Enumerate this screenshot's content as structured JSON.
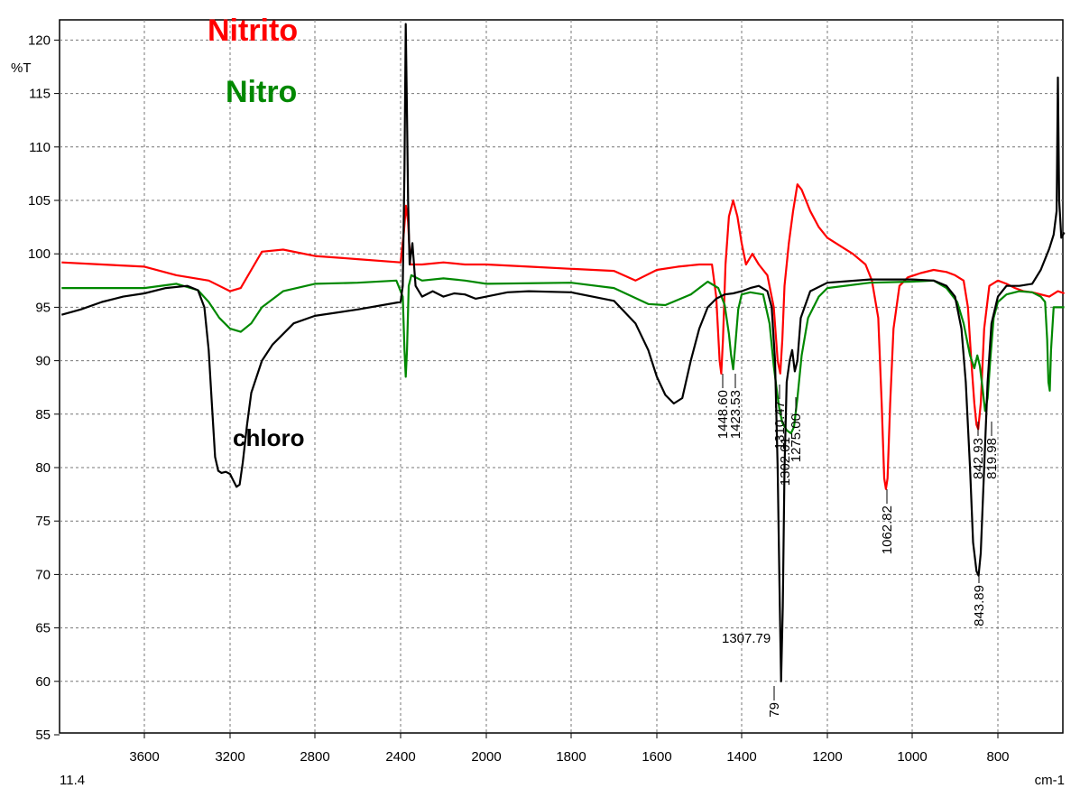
{
  "chart_data": {
    "type": "line",
    "ylabel": "%T",
    "xlabel": "cm-1",
    "x_start_label": "11.4",
    "xlim": [
      4000,
      640
    ],
    "ylim": [
      55,
      122
    ],
    "x_ticks": [
      3600,
      3200,
      2800,
      2400,
      2000,
      1800,
      1600,
      1400,
      1200,
      1000,
      800
    ],
    "y_ticks": [
      55,
      60,
      65,
      70,
      75,
      80,
      85,
      90,
      95,
      100,
      105,
      110,
      115,
      120
    ],
    "grid": true,
    "legend": [
      {
        "text": "Nitrito",
        "color": "#ff0000"
      },
      {
        "text": "Nitro",
        "color": "#008800"
      }
    ],
    "series": [
      {
        "name": "Nitrito",
        "color": "#ff0000",
        "points": [
          [
            3990,
            99.2
          ],
          [
            3800,
            99.0
          ],
          [
            3600,
            98.8
          ],
          [
            3450,
            98.0
          ],
          [
            3300,
            97.5
          ],
          [
            3250,
            97.0
          ],
          [
            3200,
            96.5
          ],
          [
            3150,
            96.8
          ],
          [
            3100,
            98.5
          ],
          [
            3050,
            100.2
          ],
          [
            2950,
            100.4
          ],
          [
            2800,
            99.8
          ],
          [
            2600,
            99.5
          ],
          [
            2400,
            99.2
          ],
          [
            2385,
            102
          ],
          [
            2375,
            104.5
          ],
          [
            2365,
            103
          ],
          [
            2355,
            99
          ],
          [
            2300,
            99.0
          ],
          [
            2200,
            99.2
          ],
          [
            2100,
            99.0
          ],
          [
            2000,
            99.0
          ],
          [
            1900,
            98.8
          ],
          [
            1800,
            98.6
          ],
          [
            1700,
            98.4
          ],
          [
            1650,
            97.5
          ],
          [
            1600,
            98.5
          ],
          [
            1550,
            98.8
          ],
          [
            1500,
            99.0
          ],
          [
            1470,
            99.0
          ],
          [
            1460,
            96
          ],
          [
            1452,
            90
          ],
          [
            1448,
            88.8
          ],
          [
            1444,
            92
          ],
          [
            1438,
            99
          ],
          [
            1430,
            103.5
          ],
          [
            1420,
            105
          ],
          [
            1410,
            103.5
          ],
          [
            1400,
            101
          ],
          [
            1390,
            99
          ],
          [
            1375,
            100
          ],
          [
            1360,
            99
          ],
          [
            1340,
            98
          ],
          [
            1325,
            95
          ],
          [
            1316,
            90
          ],
          [
            1310,
            88.8
          ],
          [
            1305,
            92
          ],
          [
            1300,
            97
          ],
          [
            1290,
            101
          ],
          [
            1280,
            104
          ],
          [
            1270,
            106.5
          ],
          [
            1260,
            106
          ],
          [
            1240,
            104
          ],
          [
            1220,
            102.5
          ],
          [
            1200,
            101.5
          ],
          [
            1160,
            100.5
          ],
          [
            1140,
            100
          ],
          [
            1110,
            99
          ],
          [
            1095,
            97.5
          ],
          [
            1080,
            94
          ],
          [
            1072,
            86
          ],
          [
            1066,
            79
          ],
          [
            1062,
            78.0
          ],
          [
            1058,
            79
          ],
          [
            1052,
            86
          ],
          [
            1044,
            93
          ],
          [
            1030,
            97
          ],
          [
            1010,
            97.8
          ],
          [
            980,
            98.2
          ],
          [
            950,
            98.5
          ],
          [
            920,
            98.3
          ],
          [
            900,
            98.0
          ],
          [
            880,
            97.5
          ],
          [
            870,
            95
          ],
          [
            862,
            90
          ],
          [
            855,
            86
          ],
          [
            850,
            84
          ],
          [
            846,
            83.6
          ],
          [
            840,
            86
          ],
          [
            832,
            93
          ],
          [
            820,
            97
          ],
          [
            800,
            97.5
          ],
          [
            780,
            97.2
          ],
          [
            760,
            96.8
          ],
          [
            740,
            96.5
          ],
          [
            720,
            96.4
          ],
          [
            700,
            96.2
          ],
          [
            680,
            96.0
          ],
          [
            660,
            96.5
          ],
          [
            645,
            96.3
          ]
        ]
      },
      {
        "name": "Nitro",
        "color": "#008800",
        "points": [
          [
            3990,
            96.8
          ],
          [
            3800,
            96.8
          ],
          [
            3600,
            96.8
          ],
          [
            3450,
            97.2
          ],
          [
            3350,
            96.6
          ],
          [
            3300,
            95.5
          ],
          [
            3250,
            94
          ],
          [
            3200,
            93.0
          ],
          [
            3150,
            92.7
          ],
          [
            3100,
            93.5
          ],
          [
            3050,
            95
          ],
          [
            2950,
            96.5
          ],
          [
            2800,
            97.2
          ],
          [
            2600,
            97.3
          ],
          [
            2420,
            97.5
          ],
          [
            2390,
            96
          ],
          [
            2382,
            91
          ],
          [
            2376,
            88.5
          ],
          [
            2370,
            91
          ],
          [
            2362,
            97
          ],
          [
            2350,
            98
          ],
          [
            2300,
            97.5
          ],
          [
            2200,
            97.7
          ],
          [
            2100,
            97.5
          ],
          [
            2000,
            97.2
          ],
          [
            1800,
            97.3
          ],
          [
            1700,
            96.8
          ],
          [
            1620,
            95.3
          ],
          [
            1580,
            95.2
          ],
          [
            1520,
            96.2
          ],
          [
            1480,
            97.4
          ],
          [
            1455,
            96.8
          ],
          [
            1440,
            95.2
          ],
          [
            1430,
            92.5
          ],
          [
            1425,
            90.5
          ],
          [
            1420,
            89.2
          ],
          [
            1415,
            91.5
          ],
          [
            1408,
            94.8
          ],
          [
            1400,
            96.2
          ],
          [
            1380,
            96.4
          ],
          [
            1350,
            96.2
          ],
          [
            1335,
            93.5
          ],
          [
            1325,
            89.5
          ],
          [
            1318,
            87.2
          ],
          [
            1312,
            85.5
          ],
          [
            1305,
            84.2
          ],
          [
            1295,
            83.5
          ],
          [
            1285,
            83.2
          ],
          [
            1278,
            83.8
          ],
          [
            1270,
            86.5
          ],
          [
            1260,
            90.5
          ],
          [
            1245,
            94
          ],
          [
            1220,
            96
          ],
          [
            1200,
            96.8
          ],
          [
            1100,
            97.3
          ],
          [
            1000,
            97.4
          ],
          [
            950,
            97.5
          ],
          [
            920,
            96.8
          ],
          [
            895,
            95.5
          ],
          [
            880,
            93.5
          ],
          [
            865,
            90.5
          ],
          [
            855,
            89.3
          ],
          [
            848,
            90.5
          ],
          [
            842,
            89.5
          ],
          [
            836,
            87.5
          ],
          [
            830,
            85.3
          ],
          [
            824,
            86.5
          ],
          [
            818,
            90
          ],
          [
            810,
            94
          ],
          [
            800,
            95.5
          ],
          [
            780,
            96.2
          ],
          [
            750,
            96.5
          ],
          [
            720,
            96.4
          ],
          [
            700,
            96.0
          ],
          [
            690,
            95.5
          ],
          [
            685,
            92
          ],
          [
            682,
            88
          ],
          [
            679,
            87.2
          ],
          [
            676,
            91
          ],
          [
            670,
            95
          ],
          [
            655,
            95
          ],
          [
            645,
            95
          ]
        ]
      },
      {
        "name": "chloro",
        "color": "#000000",
        "points": [
          [
            3990,
            94.3
          ],
          [
            3900,
            94.8
          ],
          [
            3800,
            95.5
          ],
          [
            3700,
            96.0
          ],
          [
            3600,
            96.3
          ],
          [
            3500,
            96.8
          ],
          [
            3400,
            97.0
          ],
          [
            3350,
            96.6
          ],
          [
            3320,
            95
          ],
          [
            3300,
            91
          ],
          [
            3285,
            86
          ],
          [
            3270,
            81
          ],
          [
            3255,
            79.7
          ],
          [
            3240,
            79.5
          ],
          [
            3220,
            79.6
          ],
          [
            3200,
            79.4
          ],
          [
            3185,
            78.8
          ],
          [
            3170,
            78.2
          ],
          [
            3155,
            78.4
          ],
          [
            3140,
            80.5
          ],
          [
            3120,
            84
          ],
          [
            3100,
            87
          ],
          [
            3050,
            90
          ],
          [
            3000,
            91.5
          ],
          [
            2900,
            93.5
          ],
          [
            2800,
            94.2
          ],
          [
            2600,
            94.8
          ],
          [
            2400,
            95.5
          ],
          [
            2390,
            97
          ],
          [
            2382,
            108
          ],
          [
            2376,
            121.5
          ],
          [
            2370,
            113
          ],
          [
            2365,
            105
          ],
          [
            2358,
            99
          ],
          [
            2345,
            101
          ],
          [
            2330,
            97
          ],
          [
            2300,
            96
          ],
          [
            2250,
            96.5
          ],
          [
            2200,
            96
          ],
          [
            2150,
            96.3
          ],
          [
            2100,
            96.2
          ],
          [
            2050,
            95.8
          ],
          [
            2000,
            96
          ],
          [
            1950,
            96.4
          ],
          [
            1900,
            96.5
          ],
          [
            1800,
            96.4
          ],
          [
            1700,
            95.6
          ],
          [
            1650,
            93.5
          ],
          [
            1620,
            91
          ],
          [
            1600,
            88.5
          ],
          [
            1580,
            86.8
          ],
          [
            1560,
            86.0
          ],
          [
            1540,
            86.5
          ],
          [
            1520,
            90
          ],
          [
            1500,
            93
          ],
          [
            1480,
            95
          ],
          [
            1460,
            95.8
          ],
          [
            1440,
            96.2
          ],
          [
            1420,
            96.3
          ],
          [
            1400,
            96.5
          ],
          [
            1380,
            96.8
          ],
          [
            1360,
            97
          ],
          [
            1340,
            96.5
          ],
          [
            1330,
            95
          ],
          [
            1322,
            90
          ],
          [
            1316,
            80
          ],
          [
            1311,
            67
          ],
          [
            1308,
            60.0
          ],
          [
            1304,
            67
          ],
          [
            1300,
            80
          ],
          [
            1295,
            88
          ],
          [
            1288,
            90
          ],
          [
            1282,
            91
          ],
          [
            1276,
            89
          ],
          [
            1270,
            90
          ],
          [
            1262,
            94
          ],
          [
            1240,
            96.5
          ],
          [
            1200,
            97.3
          ],
          [
            1100,
            97.6
          ],
          [
            1000,
            97.6
          ],
          [
            950,
            97.5
          ],
          [
            920,
            97
          ],
          [
            900,
            96
          ],
          [
            885,
            93
          ],
          [
            875,
            88
          ],
          [
            865,
            80
          ],
          [
            858,
            73
          ],
          [
            850,
            70.3
          ],
          [
            845,
            69.9
          ],
          [
            840,
            72
          ],
          [
            832,
            80
          ],
          [
            824,
            88
          ],
          [
            815,
            93.5
          ],
          [
            800,
            96
          ],
          [
            780,
            97
          ],
          [
            750,
            97
          ],
          [
            720,
            97.2
          ],
          [
            700,
            98.5
          ],
          [
            680,
            100.5
          ],
          [
            670,
            101.8
          ],
          [
            663,
            104
          ],
          [
            660,
            116.5
          ],
          [
            657,
            105
          ],
          [
            652,
            101.5
          ],
          [
            645,
            102
          ]
        ]
      }
    ],
    "annotations": [
      {
        "text": "chloro",
        "color": "#000000"
      },
      {
        "text": "1448.60",
        "color": "#000000"
      },
      {
        "text": "1423.53",
        "color": "#000000"
      },
      {
        "text": "1310.47",
        "color": "#000000"
      },
      {
        "text": "1302.01",
        "color": "#000000"
      },
      {
        "text": "1275.00",
        "color": "#000000"
      },
      {
        "text": "1062.82",
        "color": "#000000"
      },
      {
        "text": "842.93",
        "color": "#000000"
      },
      {
        "text": "819.98",
        "color": "#000000"
      },
      {
        "text": "843.89",
        "color": "#000000"
      },
      {
        "text": "1307.79",
        "color": "#000000"
      },
      {
        "text": "79",
        "color": "#000000"
      }
    ]
  }
}
